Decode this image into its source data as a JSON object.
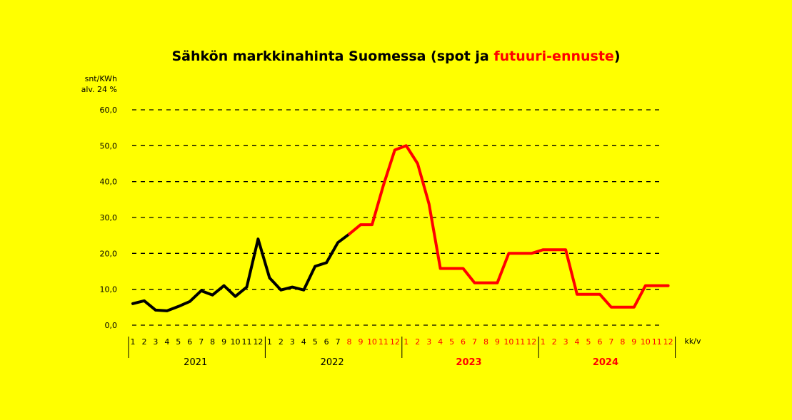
{
  "chart_data": {
    "type": "line",
    "title_parts": [
      "Sähkön markkinahinta Suomessa (spot ja ",
      "futuuri-ennuste",
      ")"
    ],
    "ylabel_lines": [
      "snt/KWh",
      "alv. 24 %"
    ],
    "xlabel": "kk/v",
    "ylim": [
      0,
      60
    ],
    "yticks": [
      "0,0",
      "10,0",
      "20,0",
      "30,0",
      "40,0",
      "50,0",
      "60,0"
    ],
    "grid": "horizontal dashed",
    "x_month_labels": [
      "1",
      "2",
      "3",
      "4",
      "5",
      "6",
      "7",
      "8",
      "9",
      "10",
      "11",
      "12"
    ],
    "years": [
      "2021",
      "2022",
      "2023",
      "2024"
    ],
    "series": [
      {
        "color": "#000000",
        "x_start_index": 0,
        "values": [
          6.0,
          6.8,
          4.2,
          4.0,
          5.2,
          6.6,
          9.6,
          8.4,
          11.0,
          8.0,
          10.6,
          24.0,
          13.2,
          9.8,
          10.6,
          9.8,
          16.4,
          17.4,
          23.0,
          25.4
        ]
      },
      {
        "color": "#ff0000",
        "x_start_index": 19,
        "values": [
          25.4,
          28.0,
          28.0,
          39.0,
          48.8,
          50.0,
          45.0,
          33.8,
          15.8,
          15.8,
          15.8,
          11.8,
          11.8,
          11.8,
          20.0,
          20.0,
          20.0,
          21.0,
          21.0,
          21.0,
          8.6,
          8.6,
          8.6,
          5.0,
          5.0,
          5.0,
          11.0,
          11.0,
          11.0
        ]
      }
    ],
    "year_colors": [
      "#000000",
      "#000000",
      "#ff0000",
      "#ff0000"
    ],
    "forecast_start_index": 19
  }
}
